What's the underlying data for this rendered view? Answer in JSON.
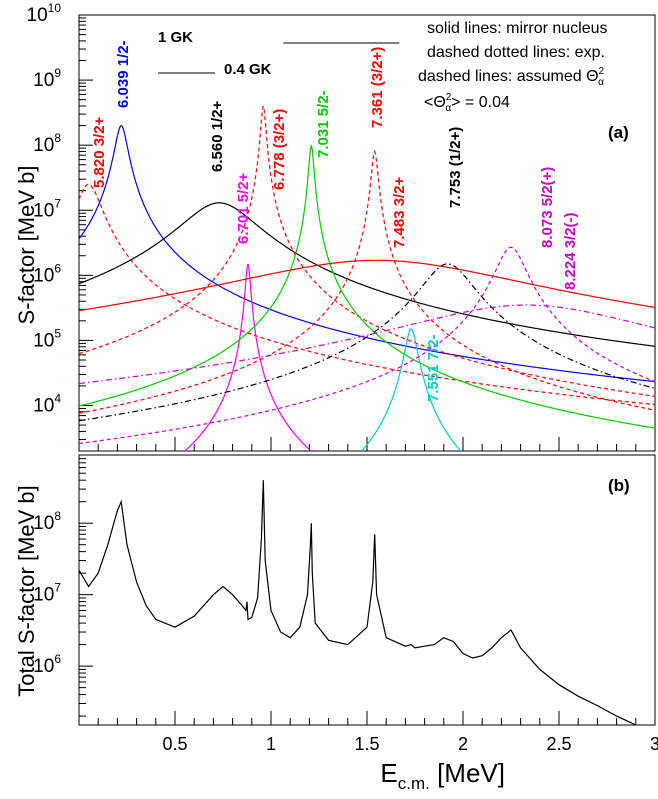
{
  "chart_data": [
    {
      "panel": "a",
      "type": "line",
      "panel_label": "(a)",
      "ylabel": "S-factor [MeV b]",
      "xlim": [
        0,
        3
      ],
      "ylim": [
        2000,
        10000000000
      ],
      "yscale": "log",
      "grid": false,
      "legend_text": [
        "solid lines: mirror nucleus",
        "dashed dotted lines: exp.",
        "dashed lines: assumed Θ",
        "<Θ",
        "> = 0.04"
      ],
      "temperature_bars": [
        {
          "label": "1 GK",
          "x_range": [
            0.7,
            1.71
          ]
        },
        {
          "label": "0.4 GK",
          "x_range": [
            0.53,
            0.85
          ]
        }
      ],
      "y_tick_labels": [
        "10",
        "10",
        "10",
        "10",
        "10",
        "10",
        "10"
      ],
      "y_tick_exponents": [
        "10",
        "9",
        "8",
        "7",
        "6",
        "5",
        "4"
      ],
      "series": [
        {
          "name": "5.820 3/2+",
          "color": "#ff0000",
          "style": "dashed",
          "peak_x": 0.05,
          "peak_y": 25000000,
          "half_width": 0.06,
          "floor": 3000,
          "tail_slope": 1.2
        },
        {
          "name": "6.039 1/2-",
          "color": "#0000ff",
          "style": "solid",
          "peak_x": 0.22,
          "peak_y": 200000000,
          "half_width": 0.03,
          "floor": 1000,
          "tail_slope": 1.0
        },
        {
          "name": "6.560 1/2+",
          "color": "#000000",
          "style": "solid",
          "peak_x": 0.73,
          "peak_y": 13000000,
          "half_width": 0.18,
          "floor": 2000,
          "tail_slope": 1.0
        },
        {
          "name": "6.701 5/2+",
          "color": "#ff00ff",
          "style": "solid",
          "peak_x": 0.88,
          "peak_y": 1500000,
          "half_width": 0.012,
          "floor": 2000,
          "tail_slope": 1.0
        },
        {
          "name": "6.778 (3/2+)",
          "color": "#ff0000",
          "style": "dashed",
          "peak_x": 0.96,
          "peak_y": 400000000,
          "half_width": 0.012,
          "floor": 2000,
          "tail_slope": 1.0
        },
        {
          "name": "7.031 5/2-",
          "color": "#00cc00",
          "style": "solid",
          "peak_x": 1.21,
          "peak_y": 100000000,
          "half_width": 0.012,
          "floor": 2000,
          "tail_slope": 1.0
        },
        {
          "name": "7.361 (3/2+)",
          "color": "#ff0000",
          "style": "dashed",
          "peak_x": 1.54,
          "peak_y": 80000000,
          "half_width": 0.015,
          "floor": 2000,
          "tail_slope": 1.0
        },
        {
          "name": "7.483 3/2+",
          "color": "#ff0000",
          "style": "solid",
          "peak_x": 1.55,
          "peak_y": 1700000,
          "half_width": 0.7,
          "floor": 2000,
          "tail_slope": 1.0
        },
        {
          "name": "7.551 7/2-",
          "color": "#00cccc",
          "style": "solid",
          "peak_x": 1.73,
          "peak_y": 150000,
          "half_width": 0.03,
          "floor": 2000,
          "tail_slope": 1.0
        },
        {
          "name": "7.753 (1/2+)",
          "color": "#000000",
          "style": "dashdot",
          "peak_x": 1.92,
          "peak_y": 1500000,
          "half_width": 0.12,
          "floor": 2000,
          "tail_slope": 1.0
        },
        {
          "name": "8.073 5/2(+)",
          "color": "#cc00cc",
          "style": "dashed",
          "peak_x": 2.25,
          "peak_y": 2700000,
          "half_width": 0.07,
          "floor": 2000,
          "tail_slope": 1.0
        },
        {
          "name": "8.224 3/2(-)",
          "color": "#cc00cc",
          "style": "dashdot",
          "peak_x": 2.33,
          "peak_y": 350000,
          "half_width": 0.6,
          "floor": 2000,
          "tail_slope": 1.0
        }
      ]
    },
    {
      "panel": "b",
      "type": "line",
      "panel_label": "(b)",
      "xlabel": "E",
      "xlabel_sub": "c.m.",
      "xlabel_unit": " [MeV]",
      "ylabel": "Total S-factor [MeV b]",
      "xlim": [
        0,
        3
      ],
      "ylim": [
        150000,
        900000000
      ],
      "yscale": "log",
      "grid": false,
      "x_tick_labels": [
        "0.5",
        "1",
        "1.5",
        "2",
        "2.5",
        "3"
      ],
      "x_tick_values": [
        0.5,
        1,
        1.5,
        2,
        2.5,
        3
      ],
      "y_tick_exponents": [
        "8",
        "7",
        "6"
      ],
      "series": [
        {
          "name": "",
          "color": "#000000",
          "x": [
            0,
            0.05,
            0.1,
            0.15,
            0.2,
            0.22,
            0.25,
            0.3,
            0.35,
            0.4,
            0.5,
            0.6,
            0.7,
            0.75,
            0.8,
            0.85,
            0.87,
            0.875,
            0.88,
            0.9,
            0.93,
            0.95,
            0.96,
            0.97,
            1.0,
            1.05,
            1.1,
            1.15,
            1.19,
            1.205,
            1.21,
            1.215,
            1.23,
            1.3,
            1.4,
            1.5,
            1.53,
            1.54,
            1.55,
            1.6,
            1.7,
            1.73,
            1.75,
            1.8,
            1.85,
            1.9,
            1.95,
            2.0,
            2.05,
            2.1,
            2.15,
            2.2,
            2.25,
            2.3,
            2.4,
            2.5,
            2.6,
            2.7,
            2.8,
            2.9
          ],
          "y": [
            22000000,
            13000000,
            20000000,
            50000000,
            150000000,
            200000000,
            50000000,
            15000000,
            7000000,
            4500000,
            3500000,
            5000000,
            10000000,
            13000000,
            10000000,
            7000000,
            6000000,
            8000000,
            4500000,
            4800000,
            9000000,
            60000000,
            400000000,
            30000000,
            6000000,
            3000000,
            2500000,
            3500000,
            10000000,
            50000000,
            100000000,
            20000000,
            4000000,
            2300000,
            2000000,
            3500000,
            15000000,
            70000000,
            10000000,
            2500000,
            1900000,
            2000000,
            1800000,
            1900000,
            2000000,
            2500000,
            2200000,
            1500000,
            1300000,
            1400000,
            1800000,
            2500000,
            3200000,
            1800000,
            900000,
            550000,
            380000,
            280000,
            200000,
            150000
          ]
        }
      ]
    }
  ]
}
